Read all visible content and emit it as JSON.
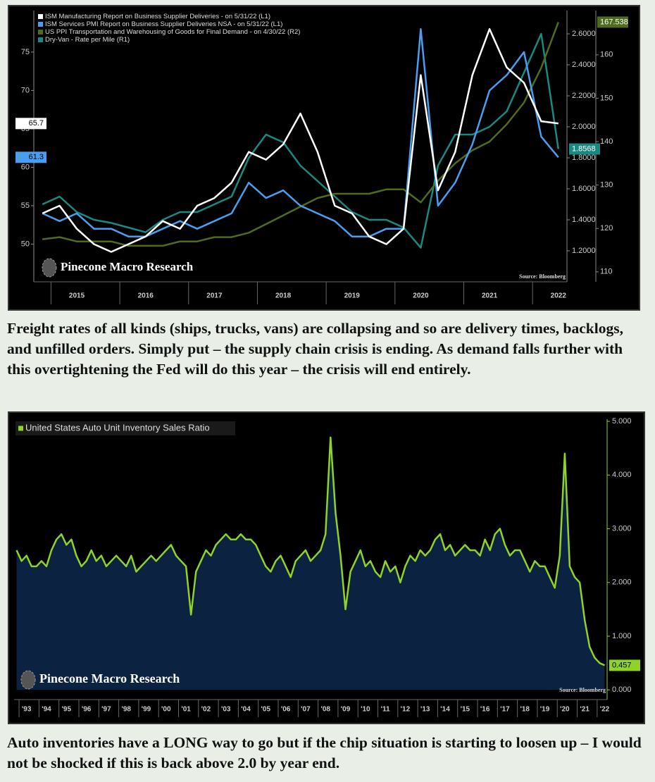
{
  "chart_data": [
    {
      "type": "line",
      "categories": [
        null,
        null,
        "2015",
        null,
        null,
        null,
        "2016",
        null,
        null,
        null,
        "2017",
        null,
        null,
        null,
        "2018",
        null,
        null,
        null,
        "2019",
        null,
        null,
        null,
        "2020",
        null,
        null,
        null,
        "2021",
        null,
        null,
        null,
        "2022"
      ],
      "series": [
        {
          "name": "ISM Manufacturing Report on Business Supplier Deliveries - on 5/31/22 (L1)",
          "color": "#ffffff",
          "axis": "y",
          "values": [
            54,
            55,
            52,
            50,
            49,
            50,
            51,
            53,
            52,
            55,
            56,
            58,
            62,
            61,
            63,
            67,
            62,
            55,
            54,
            51,
            50,
            52,
            72,
            57,
            62,
            72,
            78,
            73,
            71,
            66,
            65.7
          ]
        },
        {
          "name": "ISM Services PMI Report on Business Supplier Deliveries NSA - on 5/31/22 (L1)",
          "color": "#4a9ef0",
          "axis": "y",
          "values": [
            54,
            53,
            54,
            52,
            52,
            51,
            51,
            52,
            53,
            52,
            53,
            54,
            58,
            56,
            57,
            55,
            54,
            53,
            51,
            51,
            52,
            52,
            78,
            55,
            58,
            63,
            70,
            72,
            75,
            64,
            61.3
          ]
        },
        {
          "name": "US PPI Transportation and Warehousing of Goods for Final Demand - on 4/30/22 (R2)",
          "color": "#4f6b1e",
          "axis": "y3",
          "values": [
            117.5,
            118,
            117,
            117,
            117,
            116,
            116,
            116,
            117,
            117,
            118,
            118,
            119,
            121,
            123,
            125,
            127,
            128,
            128,
            128,
            129,
            129,
            126,
            131,
            135,
            138,
            140,
            144,
            149,
            157,
            167.538
          ]
        },
        {
          "name": "Dry-Van - Rate per Mile (R1)",
          "color": "#1a8a80",
          "axis": "y2",
          "values": [
            1.5,
            1.55,
            1.45,
            1.4,
            1.38,
            1.35,
            1.32,
            1.4,
            1.45,
            1.45,
            1.5,
            1.55,
            1.8,
            1.95,
            1.9,
            1.75,
            1.65,
            1.55,
            1.45,
            1.4,
            1.4,
            1.35,
            1.22,
            1.75,
            1.95,
            1.95,
            2.0,
            2.1,
            2.35,
            2.6,
            1.8568
          ]
        }
      ],
      "ylim": [
        45.1,
        80.4
      ],
      "yticks": [
        50,
        55,
        60,
        65,
        70,
        75
      ],
      "y2lim": [
        1.0,
        2.75
      ],
      "y2ticks": [
        {
          "value": 1.2,
          "label": "1.2000"
        },
        {
          "value": 1.4,
          "label": "1.4000"
        },
        {
          "value": 1.6,
          "label": "1.6000"
        },
        {
          "value": 1.8,
          "label": "1.8000"
        },
        {
          "value": 2.0,
          "label": "2.0000"
        },
        {
          "value": 2.2,
          "label": "2.2000"
        },
        {
          "value": 2.4,
          "label": "2.4000"
        },
        {
          "value": 2.6,
          "label": "2.6000"
        }
      ],
      "y3lim": [
        107.7,
        170.2
      ],
      "y3ticks": [
        110,
        120,
        130,
        140,
        150,
        160
      ],
      "watermark": "Pinecone Macro Research",
      "source": "Source: Bloomberg"
    },
    {
      "type": "area",
      "categories": [
        null,
        null,
        "'93",
        null,
        null,
        null,
        "'94",
        null,
        null,
        null,
        "'95",
        null,
        null,
        null,
        "'96",
        null,
        null,
        null,
        "'97",
        null,
        null,
        null,
        "'98",
        null,
        null,
        null,
        "'99",
        null,
        null,
        null,
        "'00",
        null,
        null,
        null,
        "'01",
        null,
        null,
        null,
        "'02",
        null,
        null,
        null,
        "'03",
        null,
        null,
        null,
        "'04",
        null,
        null,
        null,
        "'05",
        null,
        null,
        null,
        "'06",
        null,
        null,
        null,
        "'07",
        null,
        null,
        null,
        "'08",
        null,
        null,
        null,
        "'09",
        null,
        null,
        null,
        "'10",
        null,
        null,
        null,
        "'11",
        null,
        null,
        null,
        "'12",
        null,
        null,
        null,
        "'13",
        null,
        null,
        null,
        "'14",
        null,
        null,
        null,
        "'15",
        null,
        null,
        null,
        "'16",
        null,
        null,
        null,
        "'17",
        null,
        null,
        null,
        "'18",
        null,
        null,
        null,
        "'19",
        null,
        null,
        null,
        "'20",
        null,
        null,
        null,
        "'21",
        null,
        null,
        null,
        "'22"
      ],
      "series": [
        {
          "name": "United States Auto Unit Inventory Sales Ratio",
          "color": "#8fd22a",
          "fill": "#0b2240",
          "axis": "y",
          "values": [
            2.6,
            2.4,
            2.5,
            2.3,
            2.3,
            2.4,
            2.3,
            2.6,
            2.8,
            2.9,
            2.7,
            2.8,
            2.5,
            2.3,
            2.4,
            2.6,
            2.4,
            2.5,
            2.3,
            2.4,
            2.5,
            2.4,
            2.3,
            2.5,
            2.2,
            2.3,
            2.4,
            2.5,
            2.4,
            2.5,
            2.6,
            2.7,
            2.5,
            2.4,
            2.3,
            1.4,
            2.2,
            2.4,
            2.6,
            2.5,
            2.7,
            2.8,
            2.9,
            2.8,
            2.8,
            2.9,
            2.8,
            2.8,
            2.7,
            2.5,
            2.3,
            2.2,
            2.4,
            2.5,
            2.3,
            2.1,
            2.4,
            2.5,
            2.6,
            2.4,
            2.5,
            2.6,
            2.9,
            4.7,
            3.3,
            2.5,
            1.5,
            2.2,
            2.4,
            2.6,
            2.3,
            2.4,
            2.2,
            2.1,
            2.4,
            2.2,
            2.3,
            2.0,
            2.3,
            2.5,
            2.4,
            2.6,
            2.5,
            2.6,
            2.8,
            2.9,
            2.6,
            2.7,
            2.5,
            2.6,
            2.7,
            2.6,
            2.6,
            2.5,
            2.8,
            2.6,
            2.9,
            3.0,
            2.7,
            2.5,
            2.6,
            2.6,
            2.4,
            2.2,
            2.4,
            2.3,
            2.3,
            2.1,
            1.9,
            2.5,
            4.4,
            2.3,
            2.1,
            2.0,
            1.3,
            0.8,
            0.6,
            0.5,
            0.457
          ]
        }
      ],
      "ylim": [
        -0.18,
        5.04
      ],
      "yticks": [
        {
          "value": 0,
          "label": "0.000"
        },
        {
          "value": 1,
          "label": "1.000"
        },
        {
          "value": 2,
          "label": "2.000"
        },
        {
          "value": 3,
          "label": "3.000"
        },
        {
          "value": 4,
          "label": "4.000"
        },
        {
          "value": 5,
          "label": "5.000"
        }
      ],
      "watermark": "Pinecone Macro Research",
      "source": "Source: Bloomberg"
    }
  ],
  "captions": [
    "Freight rates of all kinds (ships, trucks, vans) are collapsing and so are delivery times, backlogs, and unfilled orders. Simply put – the supply chain crisis is ending. As demand falls further with this overtightening the Fed will do this year – the crisis will end entirely.",
    "Auto inventories have a LONG way to go but if the chip situation is starting to loosen up – I would not be shocked if this is back above 2.0 by year end."
  ]
}
